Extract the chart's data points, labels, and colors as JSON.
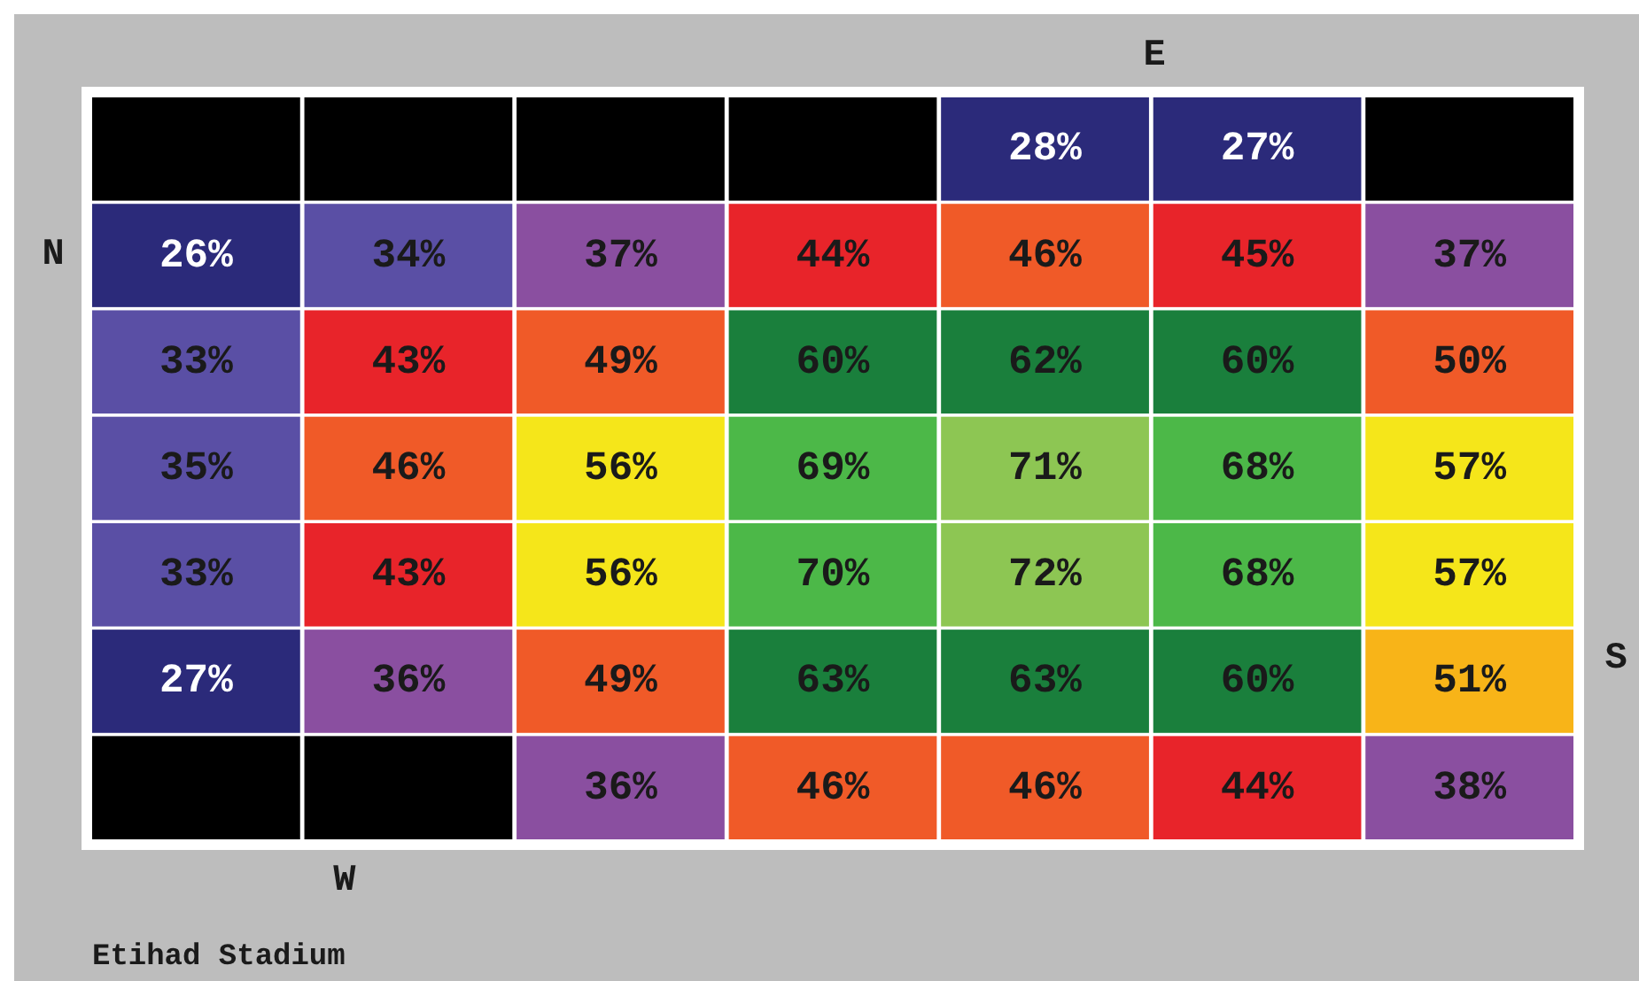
{
  "chart_data": {
    "type": "heatmap",
    "categories": [
      null,
      null,
      null,
      null,
      null,
      null,
      null
    ],
    "y_categories": [
      null,
      null,
      null,
      null,
      null,
      null,
      null
    ],
    "cells": [
      [
        null,
        null,
        null,
        null,
        28,
        27,
        null
      ],
      [
        26,
        34,
        37,
        44,
        46,
        45,
        37
      ],
      [
        33,
        43,
        49,
        60,
        62,
        60,
        50
      ],
      [
        35,
        46,
        56,
        69,
        71,
        68,
        57
      ],
      [
        33,
        43,
        56,
        70,
        72,
        68,
        57
      ],
      [
        27,
        36,
        49,
        63,
        63,
        60,
        51
      ],
      [
        null,
        null,
        36,
        46,
        46,
        44,
        38
      ]
    ],
    "cell_labels": [
      [
        null,
        null,
        null,
        null,
        "28%",
        "27%",
        null
      ],
      [
        "26%",
        "34%",
        "37%",
        "44%",
        "46%",
        "45%",
        "37%"
      ],
      [
        "33%",
        "43%",
        "49%",
        "60%",
        "62%",
        "60%",
        "50%"
      ],
      [
        "35%",
        "46%",
        "56%",
        "69%",
        "71%",
        "68%",
        "57%"
      ],
      [
        "33%",
        "43%",
        "56%",
        "70%",
        "72%",
        "68%",
        "57%"
      ],
      [
        "27%",
        "36%",
        "49%",
        "63%",
        "63%",
        "60%",
        "51%"
      ],
      [
        null,
        null,
        "36%",
        "46%",
        "46%",
        "44%",
        "38%"
      ]
    ],
    "colors": [
      [
        null,
        null,
        null,
        null,
        "#2b2a7a",
        "#2b2a7a",
        null
      ],
      [
        "#2b2a7a",
        "#5a4fa5",
        "#8a4fa0",
        "#e8242a",
        "#f05a28",
        "#e8242a",
        "#8a4fa0"
      ],
      [
        "#5a4fa5",
        "#e8242a",
        "#f05a28",
        "#1a7f3c",
        "#1a7f3c",
        "#1a7f3c",
        "#f05a28"
      ],
      [
        "#5a4fa5",
        "#f05a28",
        "#f5e61a",
        "#4cb848",
        "#8dc653",
        "#4cb848",
        "#f5e61a"
      ],
      [
        "#5a4fa5",
        "#e8242a",
        "#f5e61a",
        "#4cb848",
        "#8dc653",
        "#4cb848",
        "#f5e61a"
      ],
      [
        "#2b2a7a",
        "#8a4fa0",
        "#f05a28",
        "#1a7f3c",
        "#1a7f3c",
        "#1a7f3c",
        "#f8b418"
      ],
      [
        null,
        null,
        "#8a4fa0",
        "#f05a28",
        "#f05a28",
        "#e8242a",
        "#8a4fa0"
      ]
    ],
    "annotations": [
      "N",
      "E",
      "S",
      "W",
      "Etihad Stadium"
    ]
  }
}
